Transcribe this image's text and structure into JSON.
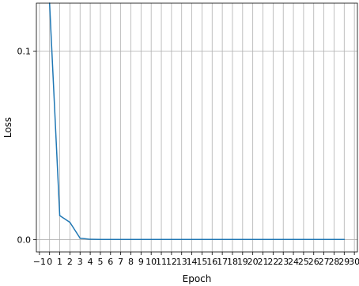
{
  "chart_data": {
    "type": "line",
    "title": "",
    "xlabel": "Epoch",
    "ylabel": "Loss",
    "xlim": [
      -1.3,
      30.3
    ],
    "ylim": [
      -0.0065,
      0.1255
    ],
    "x_ticks": [
      -1,
      0,
      1,
      2,
      3,
      4,
      5,
      6,
      7,
      8,
      9,
      10,
      11,
      12,
      13,
      14,
      15,
      16,
      17,
      18,
      19,
      20,
      21,
      22,
      23,
      24,
      25,
      26,
      27,
      28,
      29,
      30
    ],
    "x_tick_labels": [
      "−1",
      "0",
      "1",
      "2",
      "3",
      "4",
      "5",
      "6",
      "7",
      "8",
      "9",
      "10",
      "11",
      "12",
      "13",
      "14",
      "15",
      "16",
      "17",
      "18",
      "19",
      "20",
      "21",
      "22",
      "23",
      "24",
      "25",
      "26",
      "27",
      "28",
      "29",
      "30"
    ],
    "y_ticks": [
      0.0,
      0.1
    ],
    "y_tick_labels": [
      "0.0",
      "0.1"
    ],
    "grid": true,
    "series": [
      {
        "color": "#1f77b4",
        "x": [
          0,
          1,
          2,
          3,
          4,
          5,
          6,
          7,
          8,
          9,
          10,
          11,
          12,
          13,
          14,
          15,
          16,
          17,
          18,
          19,
          20,
          21,
          22,
          23,
          24,
          25,
          26,
          27,
          28,
          29
        ],
        "values": [
          0.1255,
          0.0128,
          0.0092,
          0.0008,
          0.0002,
          0.0001,
          0.0001,
          0.0001,
          0.0001,
          0.0001,
          0.0001,
          0.0001,
          0.0001,
          0.0001,
          0.0001,
          0.0001,
          0.0001,
          0.0001,
          0.0001,
          0.0001,
          0.0001,
          0.0001,
          0.0001,
          0.0001,
          0.0001,
          0.0001,
          0.0001,
          0.0001,
          0.0001,
          0.0001
        ]
      }
    ]
  }
}
